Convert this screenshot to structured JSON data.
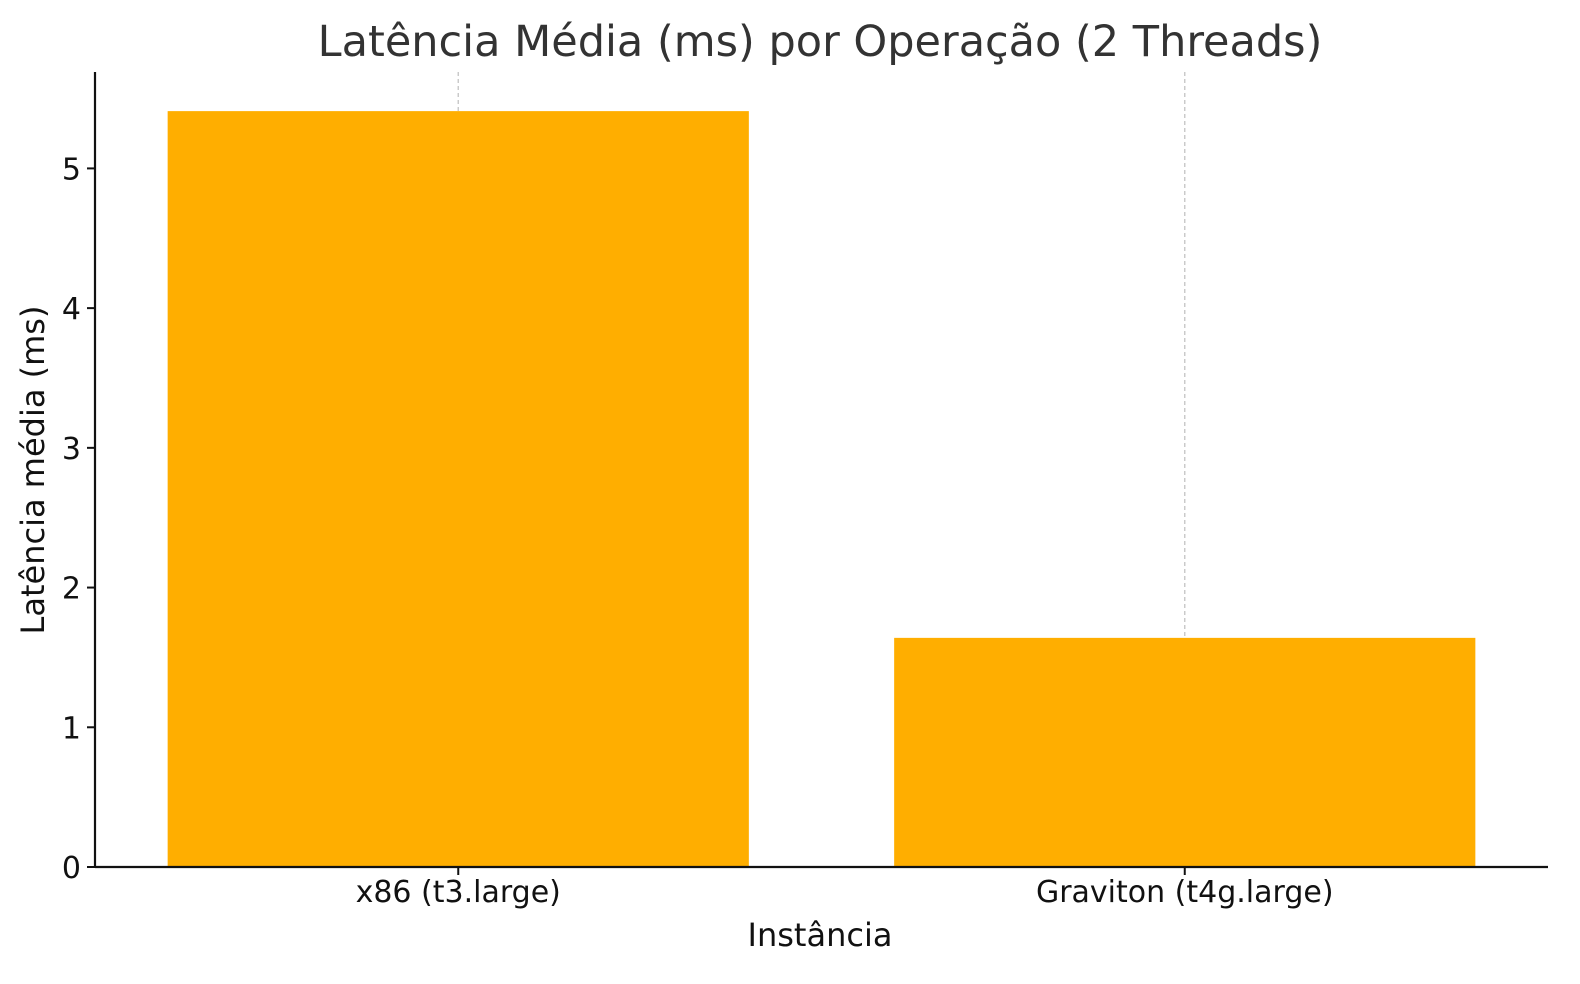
{
  "chart_data": {
    "type": "bar",
    "title": "Latência Média (ms) por Operação (2 Threads)",
    "xlabel": "Instância",
    "ylabel": "Latência média (ms)",
    "categories": [
      "x86 (t3.large)",
      "Graviton (t4g.large)"
    ],
    "values": [
      5.41,
      1.64
    ],
    "ylim": [
      0,
      5.69
    ],
    "yticks": [
      0,
      1,
      2,
      3,
      4,
      5
    ],
    "grid": "x",
    "bar_color": "#FFAE00",
    "text_color": "#333333",
    "axis_color": "#111111",
    "grid_color": "#C8C8C8"
  }
}
